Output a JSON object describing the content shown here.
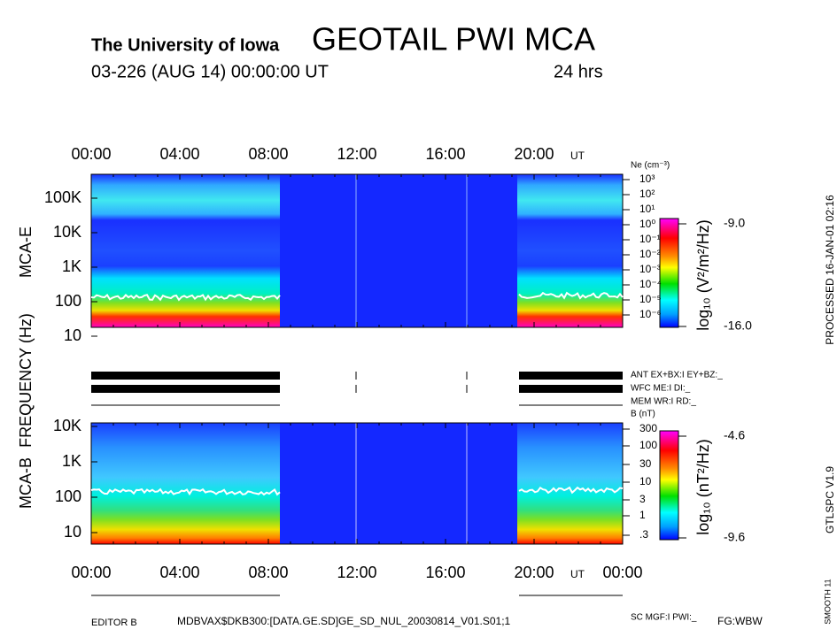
{
  "header": {
    "institution": "The University of Iowa",
    "title": "GEOTAIL PWI MCA",
    "date": "03-226 (AUG 14) 00:00:00 UT",
    "span": "24 hrs"
  },
  "top_axis": {
    "labels": [
      "00:00",
      "04:00",
      "08:00",
      "12:00",
      "16:00",
      "20:00"
    ],
    "unit": "UT"
  },
  "bottom_axis": {
    "labels": [
      "00:00",
      "04:00",
      "08:00",
      "12:00",
      "16:00",
      "20:00",
      "00:00"
    ],
    "unit": "UT"
  },
  "frequency_label": "FREQUENCY (Hz)",
  "mca_e": {
    "label": "MCA-E",
    "freq_ticks": [
      "100K",
      "10K",
      "1K",
      "100",
      "10"
    ],
    "right_label": "Ne (cm⁻³)",
    "right_ticks": [
      "10³",
      "10²",
      "10¹",
      "10⁰",
      "10⁻¹",
      "10⁻²",
      "10⁻³",
      "10⁻⁴",
      "10⁻⁵",
      "10⁻⁶"
    ],
    "colorbar_label": "log₁₀ (V²/m²/Hz)",
    "colorbar_max": "-9.0",
    "colorbar_min": "-16.0"
  },
  "modes": [
    "ANT EX+BX:I EY+BZ:_",
    "WFC ME:I DI:_",
    "MEM WR:I RD:_"
  ],
  "mca_b": {
    "label": "MCA-B",
    "freq_ticks": [
      "10K",
      "1K",
      "100",
      "10"
    ],
    "right_label": "B (nT)",
    "right_ticks": [
      "300",
      "100",
      "30",
      "10",
      "3",
      "1",
      ".3"
    ],
    "colorbar_label": "log₁₀ (nT²/Hz)",
    "colorbar_max": "-4.6",
    "colorbar_min": "-9.6"
  },
  "sc_mode": "SC MGF:I PWI:_",
  "footer": {
    "editor": "EDITOR B",
    "file": "MDBVAX$DKB300:[DATA.GE.SD]GE_SD_NUL_20030814_V01.S01;1",
    "fg": "FG:WBW"
  },
  "side": {
    "processed": "PROCESSED 16-JAN-01 02:16",
    "version": "GTLSPC V1.9",
    "smooth": "SMOOTH 11"
  }
}
